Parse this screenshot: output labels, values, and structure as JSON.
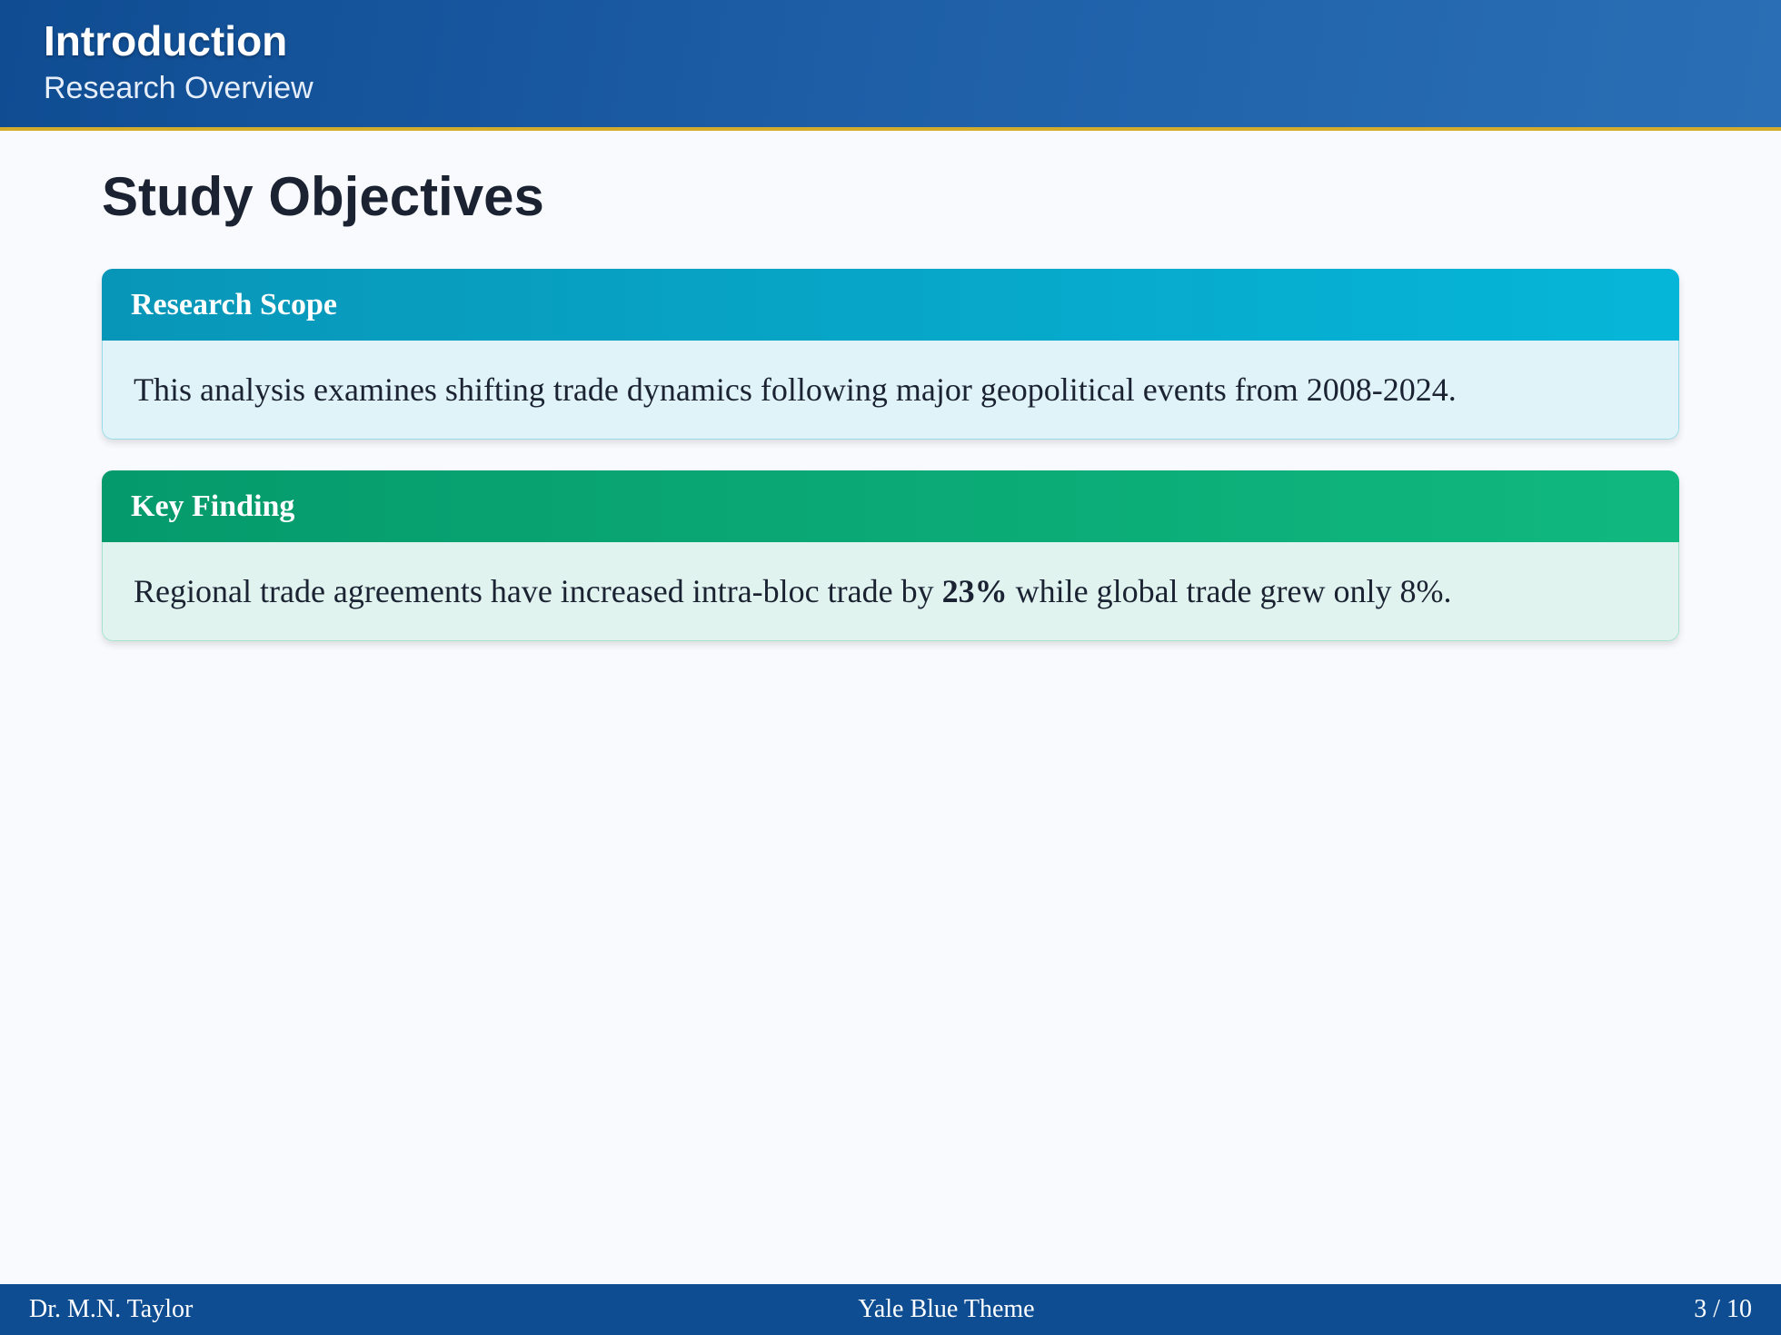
{
  "header": {
    "title": "Introduction",
    "subtitle": "Research Overview"
  },
  "main": {
    "title": "Study Objectives",
    "boxes": [
      {
        "heading": "Research Scope",
        "text": "This analysis examines shifting trade dynamics following major geopolitical events from 2008-2024."
      },
      {
        "heading": "Key Finding",
        "text_before": "Regional trade agreements have increased intra-bloc trade by ",
        "emphasis": "23%",
        "text_after": " while global trade grew only 8%."
      }
    ]
  },
  "footer": {
    "author": "Dr. M.N. Taylor",
    "theme": "Yale Blue Theme",
    "page": "3 / 10"
  },
  "colors": {
    "header": "#0f4c92",
    "accent_line": "#d4ac2b",
    "scope": "#06b6d8",
    "finding": "#10b87f",
    "footer": "#0e4d92"
  }
}
